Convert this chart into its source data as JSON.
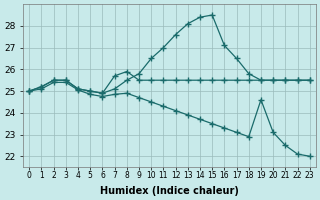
{
  "xlabel": "Humidex (Indice chaleur)",
  "x": [
    0,
    1,
    2,
    3,
    4,
    5,
    6,
    7,
    8,
    9,
    10,
    11,
    12,
    13,
    14,
    15,
    16,
    17,
    18,
    19,
    20,
    21,
    22,
    23
  ],
  "line_peak": [
    25.0,
    25.2,
    25.5,
    25.5,
    25.1,
    25.0,
    24.9,
    25.1,
    25.5,
    25.8,
    26.5,
    27.0,
    27.6,
    28.1,
    28.4,
    28.5,
    27.1,
    26.5,
    25.8,
    25.5,
    25.5,
    25.5,
    25.5,
    25.5
  ],
  "line_flat": [
    25.0,
    25.2,
    25.5,
    25.5,
    25.1,
    25.0,
    24.9,
    25.7,
    25.9,
    25.5,
    25.5,
    25.5,
    25.5,
    25.5,
    25.5,
    25.5,
    25.5,
    25.5,
    25.5,
    25.5,
    25.5,
    25.5,
    25.5,
    25.5
  ],
  "line_low": [
    25.0,
    25.1,
    25.4,
    25.4,
    25.05,
    24.85,
    24.75,
    24.85,
    24.9,
    24.7,
    24.5,
    24.3,
    24.1,
    23.9,
    23.7,
    23.5,
    23.3,
    23.1,
    22.9,
    24.6,
    23.1,
    22.5,
    22.1,
    22.0
  ],
  "ylim": [
    21.5,
    29.0
  ],
  "yticks": [
    22,
    23,
    24,
    25,
    26,
    27,
    28
  ],
  "bg_color": "#c8eaea",
  "grid_color": "#9bbcbc",
  "line_color": "#1a6b6b",
  "marker": "+",
  "marker_size": 5,
  "lw": 0.9
}
